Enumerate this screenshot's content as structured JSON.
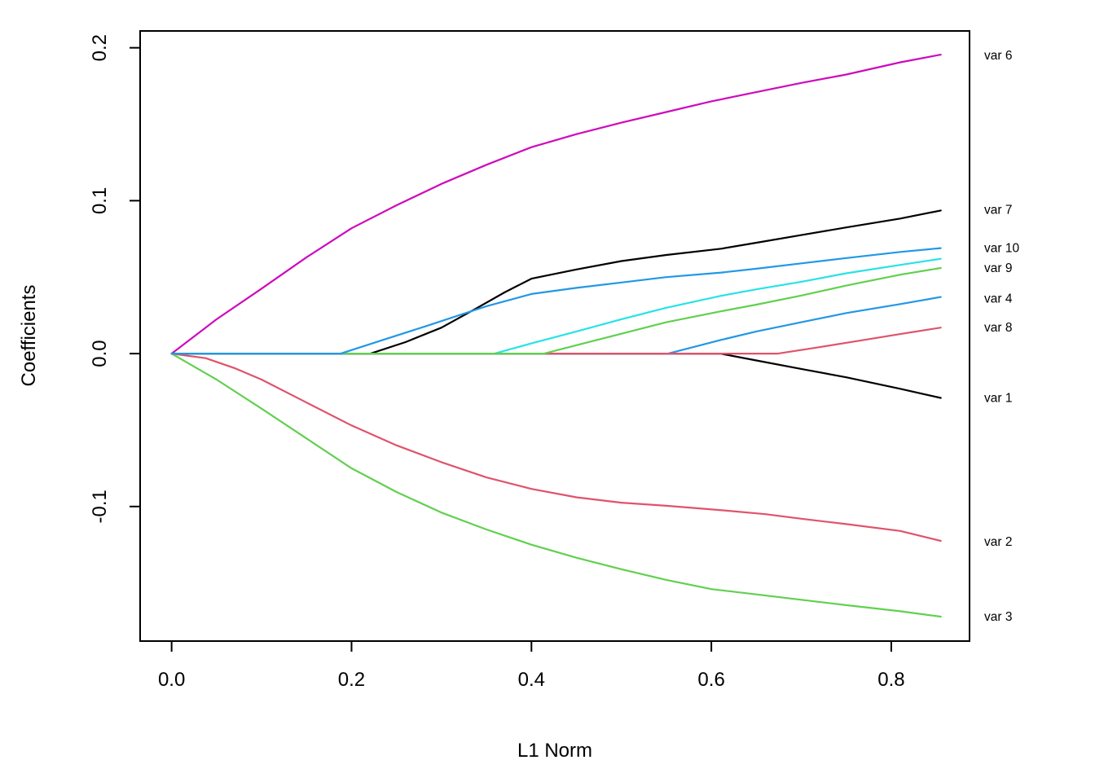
{
  "chart_data": {
    "type": "line",
    "title": "",
    "xlabel": "L1 Norm",
    "ylabel": "Coefficients",
    "grid": false,
    "legend_position": "right-edge-curve-labels",
    "x_axis": {
      "range": [
        -0.035,
        0.887
      ],
      "ticks": [
        0.0,
        0.2,
        0.4,
        0.6,
        0.8
      ],
      "tick_labels": [
        "0.0",
        "0.2",
        "0.4",
        "0.6",
        "0.8"
      ]
    },
    "y_axis": {
      "range": [
        -0.188,
        0.211
      ],
      "ticks": [
        -0.1,
        0.0,
        0.1,
        0.2
      ],
      "tick_labels": [
        "-0.1",
        "0.0",
        "0.1",
        "0.2"
      ]
    },
    "series": [
      {
        "id": "var1",
        "label": "var 1",
        "color": "#000000",
        "label_y": -0.029,
        "points": [
          [
            0,
            0
          ],
          [
            0.61,
            0
          ],
          [
            0.65,
            -0.0045
          ],
          [
            0.7,
            -0.01
          ],
          [
            0.75,
            -0.0155
          ],
          [
            0.81,
            -0.023
          ],
          [
            0.855,
            -0.029
          ]
        ]
      },
      {
        "id": "var2",
        "label": "var 2",
        "color": "#DF536B",
        "label_y": -0.123,
        "points": [
          [
            0,
            0
          ],
          [
            0.038,
            -0.003
          ],
          [
            0.07,
            -0.0095
          ],
          [
            0.1,
            -0.017
          ],
          [
            0.15,
            -0.032
          ],
          [
            0.2,
            -0.047
          ],
          [
            0.25,
            -0.06
          ],
          [
            0.3,
            -0.071
          ],
          [
            0.35,
            -0.081
          ],
          [
            0.4,
            -0.0885
          ],
          [
            0.45,
            -0.094
          ],
          [
            0.5,
            -0.0975
          ],
          [
            0.55,
            -0.0995
          ],
          [
            0.613,
            -0.1025
          ],
          [
            0.66,
            -0.105
          ],
          [
            0.7,
            -0.108
          ],
          [
            0.75,
            -0.1115
          ],
          [
            0.81,
            -0.116
          ],
          [
            0.855,
            -0.1225
          ]
        ]
      },
      {
        "id": "var3",
        "label": "var 3",
        "color": "#61D04F",
        "label_y": -0.172,
        "points": [
          [
            0,
            0
          ],
          [
            0.05,
            -0.017
          ],
          [
            0.1,
            -0.036
          ],
          [
            0.15,
            -0.0555
          ],
          [
            0.2,
            -0.075
          ],
          [
            0.25,
            -0.0905
          ],
          [
            0.3,
            -0.104
          ],
          [
            0.35,
            -0.115
          ],
          [
            0.4,
            -0.125
          ],
          [
            0.45,
            -0.1335
          ],
          [
            0.5,
            -0.141
          ],
          [
            0.55,
            -0.148
          ],
          [
            0.6,
            -0.154
          ],
          [
            0.65,
            -0.1575
          ],
          [
            0.7,
            -0.161
          ],
          [
            0.75,
            -0.1645
          ],
          [
            0.81,
            -0.1685
          ],
          [
            0.855,
            -0.172
          ]
        ]
      },
      {
        "id": "var4",
        "label": "var 4",
        "color": "#2297E6",
        "label_y": 0.036,
        "points": [
          [
            0,
            0
          ],
          [
            0.552,
            0
          ],
          [
            0.611,
            0.009
          ],
          [
            0.65,
            0.0145
          ],
          [
            0.7,
            0.0205
          ],
          [
            0.75,
            0.0265
          ],
          [
            0.81,
            0.0324
          ],
          [
            0.855,
            0.037
          ]
        ]
      },
      {
        "id": "var5",
        "label": "",
        "color": "#28E2E5",
        "label_y": null,
        "points": [
          [
            0,
            0
          ],
          [
            0.359,
            0
          ],
          [
            0.402,
            0.007
          ],
          [
            0.45,
            0.0145
          ],
          [
            0.5,
            0.0225
          ],
          [
            0.55,
            0.03
          ],
          [
            0.611,
            0.0378
          ],
          [
            0.65,
            0.042
          ],
          [
            0.7,
            0.047
          ],
          [
            0.75,
            0.0525
          ],
          [
            0.81,
            0.058
          ],
          [
            0.855,
            0.062
          ]
        ]
      },
      {
        "id": "var6",
        "label": "var 6",
        "color": "#CD0BBC",
        "label_y": 0.195,
        "points": [
          [
            0,
            0
          ],
          [
            0.05,
            0.0225
          ],
          [
            0.1,
            0.0425
          ],
          [
            0.15,
            0.063
          ],
          [
            0.2,
            0.082
          ],
          [
            0.25,
            0.097
          ],
          [
            0.3,
            0.111
          ],
          [
            0.35,
            0.1235
          ],
          [
            0.4,
            0.135
          ],
          [
            0.45,
            0.1435
          ],
          [
            0.5,
            0.151
          ],
          [
            0.55,
            0.158
          ],
          [
            0.6,
            0.165
          ],
          [
            0.65,
            0.171
          ],
          [
            0.7,
            0.177
          ],
          [
            0.75,
            0.1825
          ],
          [
            0.81,
            0.1905
          ],
          [
            0.855,
            0.1955
          ]
        ]
      },
      {
        "id": "var7",
        "label": "var 7",
        "color": "#000000",
        "label_y": 0.094,
        "points": [
          [
            0,
            0
          ],
          [
            0.221,
            0
          ],
          [
            0.26,
            0.0075
          ],
          [
            0.3,
            0.017
          ],
          [
            0.34,
            0.03
          ],
          [
            0.37,
            0.04
          ],
          [
            0.4,
            0.049
          ],
          [
            0.45,
            0.055
          ],
          [
            0.5,
            0.0605
          ],
          [
            0.55,
            0.0645
          ],
          [
            0.611,
            0.0686
          ],
          [
            0.65,
            0.0725
          ],
          [
            0.7,
            0.0775
          ],
          [
            0.75,
            0.0825
          ],
          [
            0.81,
            0.0883
          ],
          [
            0.855,
            0.0936
          ]
        ]
      },
      {
        "id": "var8",
        "label": "var 8",
        "color": "#DF536B",
        "label_y": 0.017,
        "points": [
          [
            0,
            0
          ],
          [
            0.674,
            0
          ],
          [
            0.72,
            0.0042
          ],
          [
            0.76,
            0.008
          ],
          [
            0.81,
            0.0128
          ],
          [
            0.855,
            0.017
          ]
        ]
      },
      {
        "id": "var9",
        "label": "var 9",
        "color": "#61D04F",
        "label_y": 0.056,
        "points": [
          [
            0,
            0
          ],
          [
            0.414,
            0
          ],
          [
            0.45,
            0.0055
          ],
          [
            0.5,
            0.013
          ],
          [
            0.55,
            0.0205
          ],
          [
            0.611,
            0.0277
          ],
          [
            0.65,
            0.032
          ],
          [
            0.7,
            0.038
          ],
          [
            0.75,
            0.0445
          ],
          [
            0.81,
            0.0516
          ],
          [
            0.855,
            0.056
          ]
        ]
      },
      {
        "id": "var10",
        "label": "var 10",
        "color": "#2297E6",
        "label_y": 0.069,
        "points": [
          [
            0,
            0
          ],
          [
            0.188,
            0
          ],
          [
            0.23,
            0.008
          ],
          [
            0.283,
            0.018
          ],
          [
            0.35,
            0.031
          ],
          [
            0.4,
            0.039
          ],
          [
            0.45,
            0.043
          ],
          [
            0.5,
            0.0465
          ],
          [
            0.55,
            0.05
          ],
          [
            0.611,
            0.053
          ],
          [
            0.65,
            0.0555
          ],
          [
            0.7,
            0.059
          ],
          [
            0.75,
            0.0625
          ],
          [
            0.81,
            0.0665
          ],
          [
            0.855,
            0.069
          ]
        ]
      }
    ]
  }
}
